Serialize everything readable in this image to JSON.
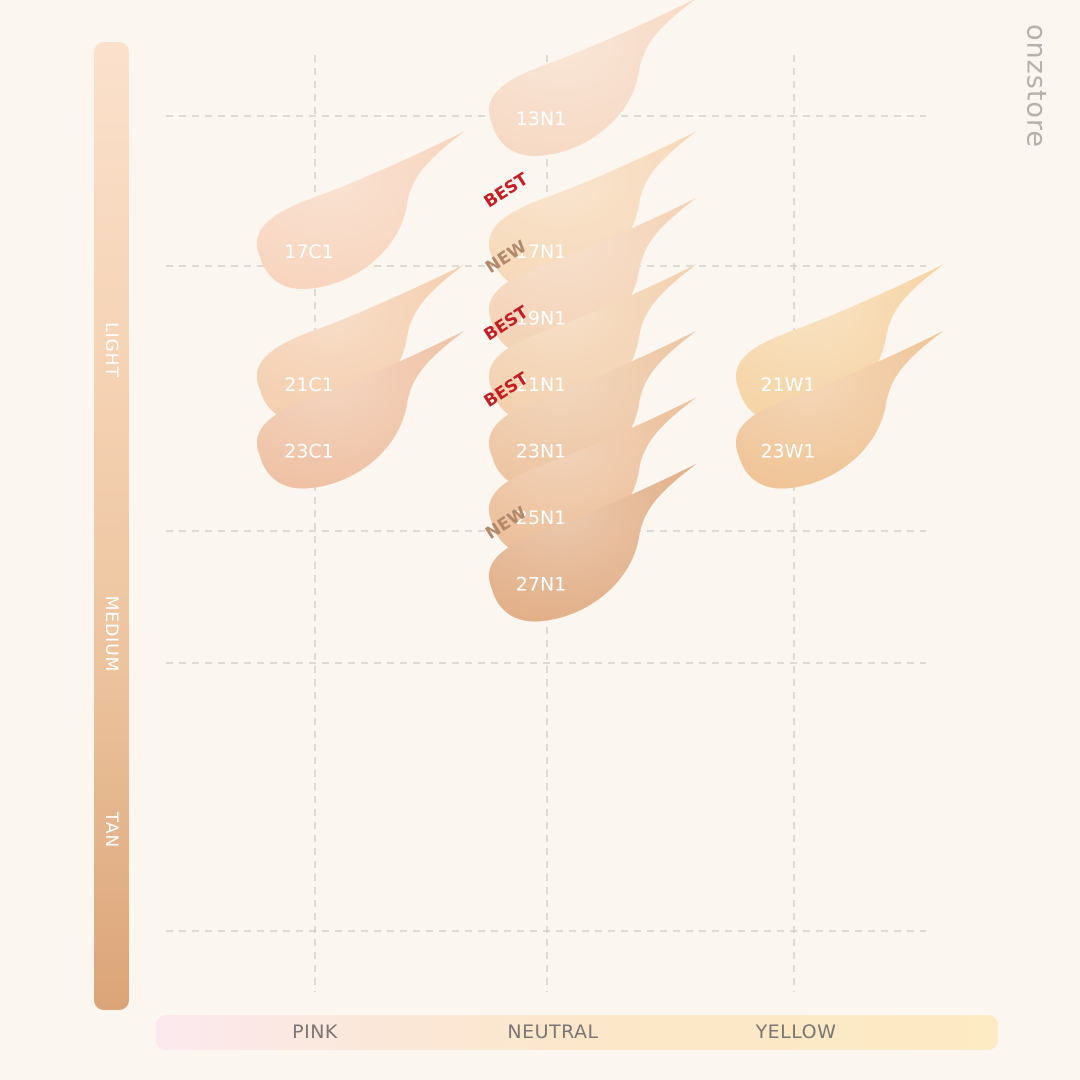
{
  "watermark": "onzstore",
  "depth_labels": [
    "LIGHT",
    "MEDIUM",
    "TAN"
  ],
  "undertone_labels": [
    "PINK",
    "NEUTRAL",
    "YELLOW"
  ],
  "colors": {
    "background": "#fcf6f0",
    "grid": "#cfc8c2",
    "badge_best": "#c41e24",
    "badge_new": "#b3896c",
    "shade_text": "#ffffff"
  },
  "chart_data": {
    "type": "scatter",
    "columns": [
      "PINK",
      "NEUTRAL",
      "YELLOW"
    ],
    "rows": [
      "LIGHT",
      "MEDIUM",
      "TAN"
    ],
    "shades": [
      {
        "name": "13N1",
        "undertone": "NEUTRAL",
        "depth": 13,
        "color": "#f6d8c2",
        "badge": ""
      },
      {
        "name": "17C1",
        "undertone": "PINK",
        "depth": 17,
        "color": "#f7d3bb",
        "badge": ""
      },
      {
        "name": "17N1",
        "undertone": "NEUTRAL",
        "depth": 17,
        "color": "#f6d7b5",
        "badge": "BEST"
      },
      {
        "name": "19N1",
        "undertone": "NEUTRAL",
        "depth": 19,
        "color": "#f3d0b2",
        "badge": "NEW"
      },
      {
        "name": "21C1",
        "undertone": "PINK",
        "depth": 21,
        "color": "#f4ccab",
        "badge": ""
      },
      {
        "name": "21N1",
        "undertone": "NEUTRAL",
        "depth": 21,
        "color": "#f2ceaa",
        "badge": "BEST"
      },
      {
        "name": "21W1",
        "undertone": "YELLOW",
        "depth": 21,
        "color": "#f5d2a1",
        "badge": ""
      },
      {
        "name": "23C1",
        "undertone": "PINK",
        "depth": 23,
        "color": "#eebfa0",
        "badge": ""
      },
      {
        "name": "23N1",
        "undertone": "NEUTRAL",
        "depth": 23,
        "color": "#ecc29d",
        "badge": "BEST"
      },
      {
        "name": "23W1",
        "undertone": "YELLOW",
        "depth": 23,
        "color": "#efc293",
        "badge": ""
      },
      {
        "name": "25N1",
        "undertone": "NEUTRAL",
        "depth": 25,
        "color": "#ebbc95",
        "badge": ""
      },
      {
        "name": "27N1",
        "undertone": "NEUTRAL",
        "depth": 27,
        "color": "#e1ac83",
        "badge": "NEW"
      }
    ]
  }
}
